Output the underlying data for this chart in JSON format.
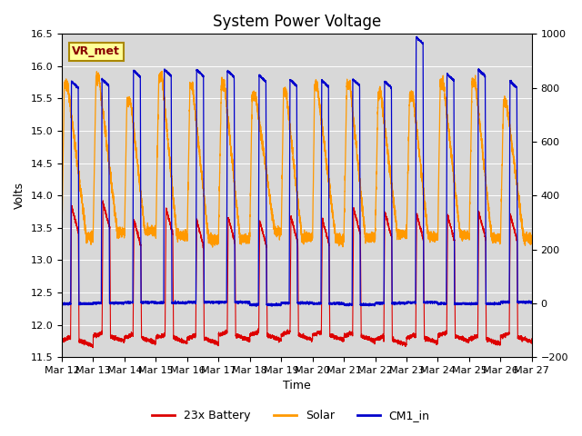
{
  "title": "System Power Voltage",
  "xlabel": "Time",
  "ylabel": "Volts",
  "ylim": [
    11.5,
    16.5
  ],
  "ylim2": [
    -200,
    1000
  ],
  "yticks_left": [
    11.5,
    12.0,
    12.5,
    13.0,
    13.5,
    14.0,
    14.5,
    15.0,
    15.5,
    16.0,
    16.5
  ],
  "yticks_right": [
    -200,
    0,
    200,
    400,
    600,
    800,
    1000
  ],
  "x_labels": [
    "Mar 12",
    "Mar 13",
    "Mar 14",
    "Mar 15",
    "Mar 16",
    "Mar 17",
    "Mar 18",
    "Mar 19",
    "Mar 20",
    "Mar 21",
    "Mar 22",
    "Mar 23",
    "Mar 24",
    "Mar 25",
    "Mar 26",
    "Mar 27"
  ],
  "color_battery": "#dd0000",
  "color_solar": "#ff9900",
  "color_cm1": "#0000cc",
  "bg_color": "#d8d8d8",
  "title_fontsize": 12,
  "label_fontsize": 9,
  "tick_fontsize": 8,
  "legend_entries": [
    "23x Battery",
    "Solar",
    "CM1_in"
  ],
  "annotation_text": "VR_met",
  "annotation_bg": "#ffff99",
  "annotation_border": "#aa8800",
  "num_days": 15
}
